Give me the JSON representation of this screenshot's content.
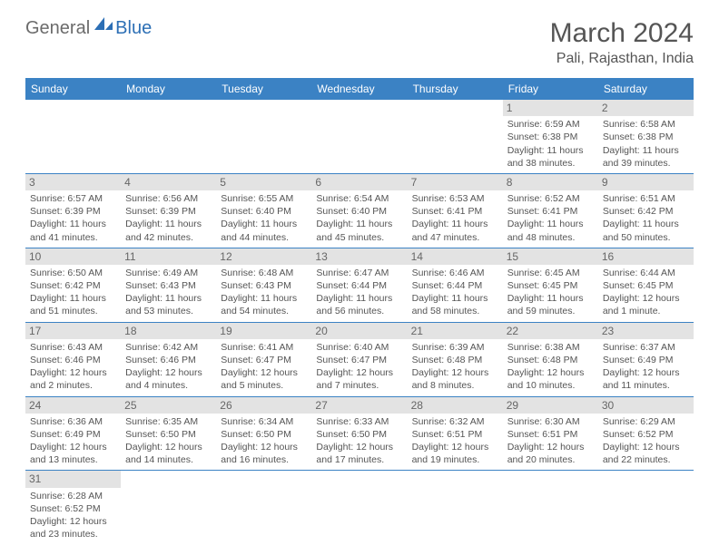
{
  "logo": {
    "general": "General",
    "blue": "Blue"
  },
  "title": "March 2024",
  "location": "Pali, Rajasthan, India",
  "day_headers": [
    "Sunday",
    "Monday",
    "Tuesday",
    "Wednesday",
    "Thursday",
    "Friday",
    "Saturday"
  ],
  "colors": {
    "header_bg": "#3b82c4",
    "header_text": "#ffffff",
    "daynum_bg": "#e3e3e3",
    "text": "#555555",
    "rule": "#3b82c4",
    "logo_general": "#6b6b6b",
    "logo_blue": "#2c6fb5"
  },
  "weeks": [
    [
      null,
      null,
      null,
      null,
      null,
      {
        "n": "1",
        "sr": "Sunrise: 6:59 AM",
        "ss": "Sunset: 6:38 PM",
        "dl": "Daylight: 11 hours and 38 minutes."
      },
      {
        "n": "2",
        "sr": "Sunrise: 6:58 AM",
        "ss": "Sunset: 6:38 PM",
        "dl": "Daylight: 11 hours and 39 minutes."
      }
    ],
    [
      {
        "n": "3",
        "sr": "Sunrise: 6:57 AM",
        "ss": "Sunset: 6:39 PM",
        "dl": "Daylight: 11 hours and 41 minutes."
      },
      {
        "n": "4",
        "sr": "Sunrise: 6:56 AM",
        "ss": "Sunset: 6:39 PM",
        "dl": "Daylight: 11 hours and 42 minutes."
      },
      {
        "n": "5",
        "sr": "Sunrise: 6:55 AM",
        "ss": "Sunset: 6:40 PM",
        "dl": "Daylight: 11 hours and 44 minutes."
      },
      {
        "n": "6",
        "sr": "Sunrise: 6:54 AM",
        "ss": "Sunset: 6:40 PM",
        "dl": "Daylight: 11 hours and 45 minutes."
      },
      {
        "n": "7",
        "sr": "Sunrise: 6:53 AM",
        "ss": "Sunset: 6:41 PM",
        "dl": "Daylight: 11 hours and 47 minutes."
      },
      {
        "n": "8",
        "sr": "Sunrise: 6:52 AM",
        "ss": "Sunset: 6:41 PM",
        "dl": "Daylight: 11 hours and 48 minutes."
      },
      {
        "n": "9",
        "sr": "Sunrise: 6:51 AM",
        "ss": "Sunset: 6:42 PM",
        "dl": "Daylight: 11 hours and 50 minutes."
      }
    ],
    [
      {
        "n": "10",
        "sr": "Sunrise: 6:50 AM",
        "ss": "Sunset: 6:42 PM",
        "dl": "Daylight: 11 hours and 51 minutes."
      },
      {
        "n": "11",
        "sr": "Sunrise: 6:49 AM",
        "ss": "Sunset: 6:43 PM",
        "dl": "Daylight: 11 hours and 53 minutes."
      },
      {
        "n": "12",
        "sr": "Sunrise: 6:48 AM",
        "ss": "Sunset: 6:43 PM",
        "dl": "Daylight: 11 hours and 54 minutes."
      },
      {
        "n": "13",
        "sr": "Sunrise: 6:47 AM",
        "ss": "Sunset: 6:44 PM",
        "dl": "Daylight: 11 hours and 56 minutes."
      },
      {
        "n": "14",
        "sr": "Sunrise: 6:46 AM",
        "ss": "Sunset: 6:44 PM",
        "dl": "Daylight: 11 hours and 58 minutes."
      },
      {
        "n": "15",
        "sr": "Sunrise: 6:45 AM",
        "ss": "Sunset: 6:45 PM",
        "dl": "Daylight: 11 hours and 59 minutes."
      },
      {
        "n": "16",
        "sr": "Sunrise: 6:44 AM",
        "ss": "Sunset: 6:45 PM",
        "dl": "Daylight: 12 hours and 1 minute."
      }
    ],
    [
      {
        "n": "17",
        "sr": "Sunrise: 6:43 AM",
        "ss": "Sunset: 6:46 PM",
        "dl": "Daylight: 12 hours and 2 minutes."
      },
      {
        "n": "18",
        "sr": "Sunrise: 6:42 AM",
        "ss": "Sunset: 6:46 PM",
        "dl": "Daylight: 12 hours and 4 minutes."
      },
      {
        "n": "19",
        "sr": "Sunrise: 6:41 AM",
        "ss": "Sunset: 6:47 PM",
        "dl": "Daylight: 12 hours and 5 minutes."
      },
      {
        "n": "20",
        "sr": "Sunrise: 6:40 AM",
        "ss": "Sunset: 6:47 PM",
        "dl": "Daylight: 12 hours and 7 minutes."
      },
      {
        "n": "21",
        "sr": "Sunrise: 6:39 AM",
        "ss": "Sunset: 6:48 PM",
        "dl": "Daylight: 12 hours and 8 minutes."
      },
      {
        "n": "22",
        "sr": "Sunrise: 6:38 AM",
        "ss": "Sunset: 6:48 PM",
        "dl": "Daylight: 12 hours and 10 minutes."
      },
      {
        "n": "23",
        "sr": "Sunrise: 6:37 AM",
        "ss": "Sunset: 6:49 PM",
        "dl": "Daylight: 12 hours and 11 minutes."
      }
    ],
    [
      {
        "n": "24",
        "sr": "Sunrise: 6:36 AM",
        "ss": "Sunset: 6:49 PM",
        "dl": "Daylight: 12 hours and 13 minutes."
      },
      {
        "n": "25",
        "sr": "Sunrise: 6:35 AM",
        "ss": "Sunset: 6:50 PM",
        "dl": "Daylight: 12 hours and 14 minutes."
      },
      {
        "n": "26",
        "sr": "Sunrise: 6:34 AM",
        "ss": "Sunset: 6:50 PM",
        "dl": "Daylight: 12 hours and 16 minutes."
      },
      {
        "n": "27",
        "sr": "Sunrise: 6:33 AM",
        "ss": "Sunset: 6:50 PM",
        "dl": "Daylight: 12 hours and 17 minutes."
      },
      {
        "n": "28",
        "sr": "Sunrise: 6:32 AM",
        "ss": "Sunset: 6:51 PM",
        "dl": "Daylight: 12 hours and 19 minutes."
      },
      {
        "n": "29",
        "sr": "Sunrise: 6:30 AM",
        "ss": "Sunset: 6:51 PM",
        "dl": "Daylight: 12 hours and 20 minutes."
      },
      {
        "n": "30",
        "sr": "Sunrise: 6:29 AM",
        "ss": "Sunset: 6:52 PM",
        "dl": "Daylight: 12 hours and 22 minutes."
      }
    ],
    [
      {
        "n": "31",
        "sr": "Sunrise: 6:28 AM",
        "ss": "Sunset: 6:52 PM",
        "dl": "Daylight: 12 hours and 23 minutes."
      },
      null,
      null,
      null,
      null,
      null,
      null
    ]
  ]
}
